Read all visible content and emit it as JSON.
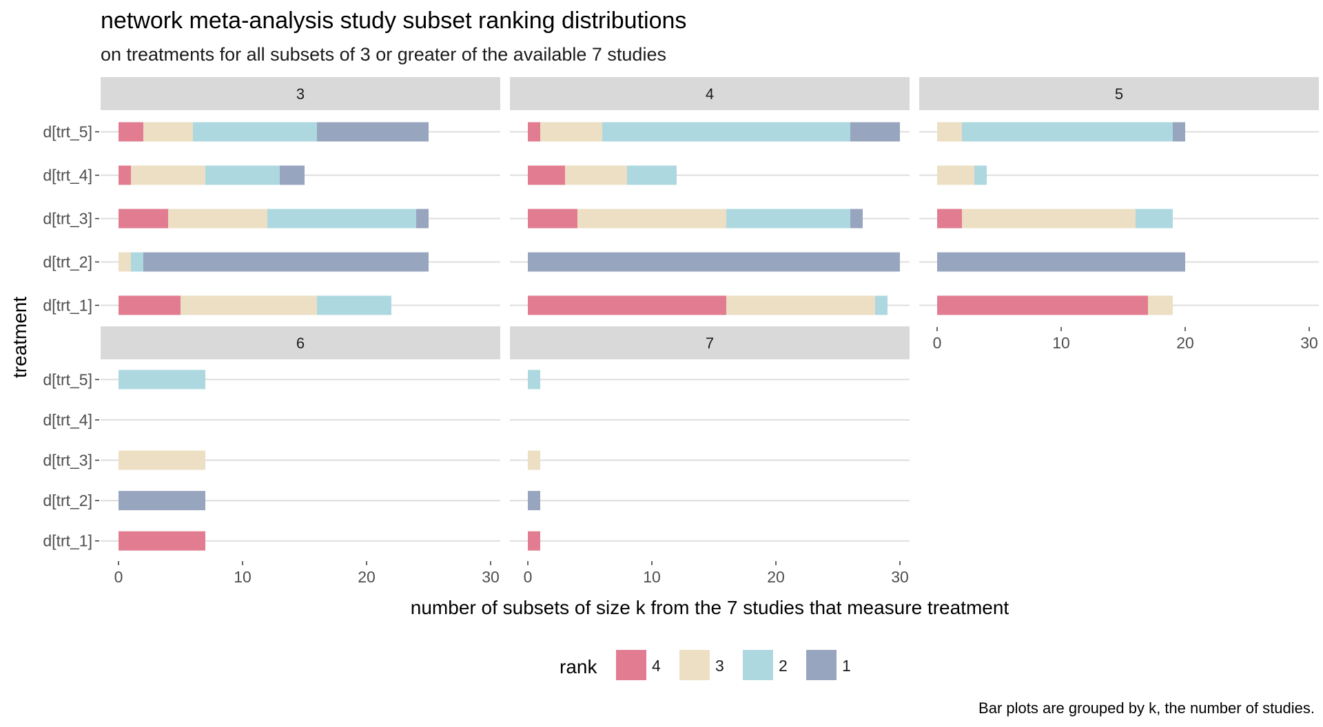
{
  "chart_data": {
    "type": "bar",
    "orientation": "horizontal",
    "stacked": true,
    "title": "network meta-analysis study subset ranking distributions",
    "subtitle": "on treatments for all subsets of 3 or greater of the available 7 studies",
    "xlabel": "number of subsets of size k from the 7 studies that measure treatment",
    "ylabel": "treatment",
    "caption": "Bar plots are grouped by k, the number of studies.",
    "xlim": [
      0,
      31
    ],
    "x_ticks": [
      0,
      10,
      20,
      30
    ],
    "categories": [
      "d[trt_1]",
      "d[trt_2]",
      "d[trt_3]",
      "d[trt_4]",
      "d[trt_5]"
    ],
    "legend": {
      "title": "rank",
      "position": "bottom",
      "entries": [
        {
          "label": "4",
          "color": "#e27d91"
        },
        {
          "label": "3",
          "color": "#ecdfc3"
        },
        {
          "label": "2",
          "color": "#aed8e0"
        },
        {
          "label": "1",
          "color": "#98a5bf"
        }
      ]
    },
    "stack_order": [
      "4",
      "3",
      "2",
      "1"
    ],
    "facets": [
      {
        "label": "3",
        "series": [
          {
            "rank": "4",
            "values": [
              5,
              0,
              4,
              1,
              2
            ]
          },
          {
            "rank": "3",
            "values": [
              11,
              1,
              8,
              6,
              4
            ]
          },
          {
            "rank": "2",
            "values": [
              6,
              1,
              12,
              6,
              10
            ]
          },
          {
            "rank": "1",
            "values": [
              0,
              23,
              1,
              2,
              9
            ]
          }
        ]
      },
      {
        "label": "4",
        "series": [
          {
            "rank": "4",
            "values": [
              16,
              0,
              4,
              3,
              1
            ]
          },
          {
            "rank": "3",
            "values": [
              12,
              0,
              12,
              5,
              5
            ]
          },
          {
            "rank": "2",
            "values": [
              1,
              0,
              10,
              4,
              20
            ]
          },
          {
            "rank": "1",
            "values": [
              0,
              30,
              1,
              0,
              4
            ]
          }
        ]
      },
      {
        "label": "5",
        "series": [
          {
            "rank": "4",
            "values": [
              17,
              0,
              2,
              0,
              0
            ]
          },
          {
            "rank": "3",
            "values": [
              2,
              0,
              14,
              3,
              2
            ]
          },
          {
            "rank": "2",
            "values": [
              0,
              0,
              3,
              1,
              17
            ]
          },
          {
            "rank": "1",
            "values": [
              0,
              20,
              0,
              0,
              1
            ]
          }
        ]
      },
      {
        "label": "6",
        "series": [
          {
            "rank": "4",
            "values": [
              7,
              0,
              0,
              0,
              0
            ]
          },
          {
            "rank": "3",
            "values": [
              0,
              0,
              7,
              0,
              0
            ]
          },
          {
            "rank": "2",
            "values": [
              0,
              0,
              0,
              0,
              7
            ]
          },
          {
            "rank": "1",
            "values": [
              0,
              7,
              0,
              0,
              0
            ]
          }
        ]
      },
      {
        "label": "7",
        "series": [
          {
            "rank": "4",
            "values": [
              1,
              0,
              0,
              0,
              0
            ]
          },
          {
            "rank": "3",
            "values": [
              0,
              0,
              1,
              0,
              0
            ]
          },
          {
            "rank": "2",
            "values": [
              0,
              0,
              0,
              0,
              1
            ]
          },
          {
            "rank": "1",
            "values": [
              0,
              1,
              0,
              0,
              0
            ]
          }
        ]
      }
    ]
  }
}
